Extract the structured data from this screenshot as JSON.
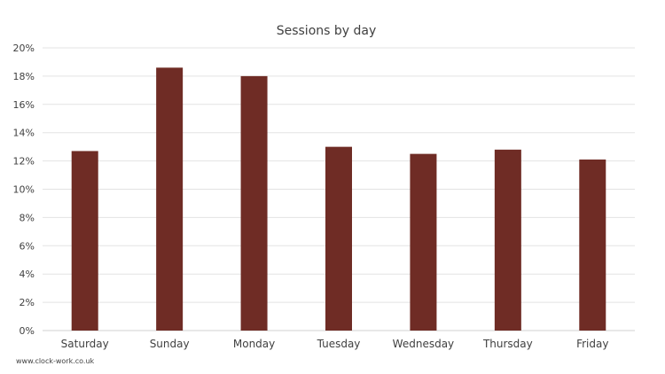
{
  "chart_data": {
    "type": "bar",
    "title": "Sessions by day",
    "xlabel": "",
    "ylabel": "",
    "categories": [
      "Saturday",
      "Sunday",
      "Monday",
      "Tuesday",
      "Wednesday",
      "Thursday",
      "Friday"
    ],
    "values": [
      12.7,
      18.6,
      18.0,
      13.0,
      12.5,
      12.8,
      12.1
    ],
    "y_tick_labels": [
      "0%",
      "2%",
      "4%",
      "6%",
      "8%",
      "10%",
      "12%",
      "14%",
      "16%",
      "18%",
      "20%"
    ],
    "ylim": [
      0,
      20
    ],
    "y_unit": "%",
    "grid": true,
    "bar_color": "#6f2c25"
  },
  "footer": {
    "source_text": "www.clock-work.co.uk"
  }
}
